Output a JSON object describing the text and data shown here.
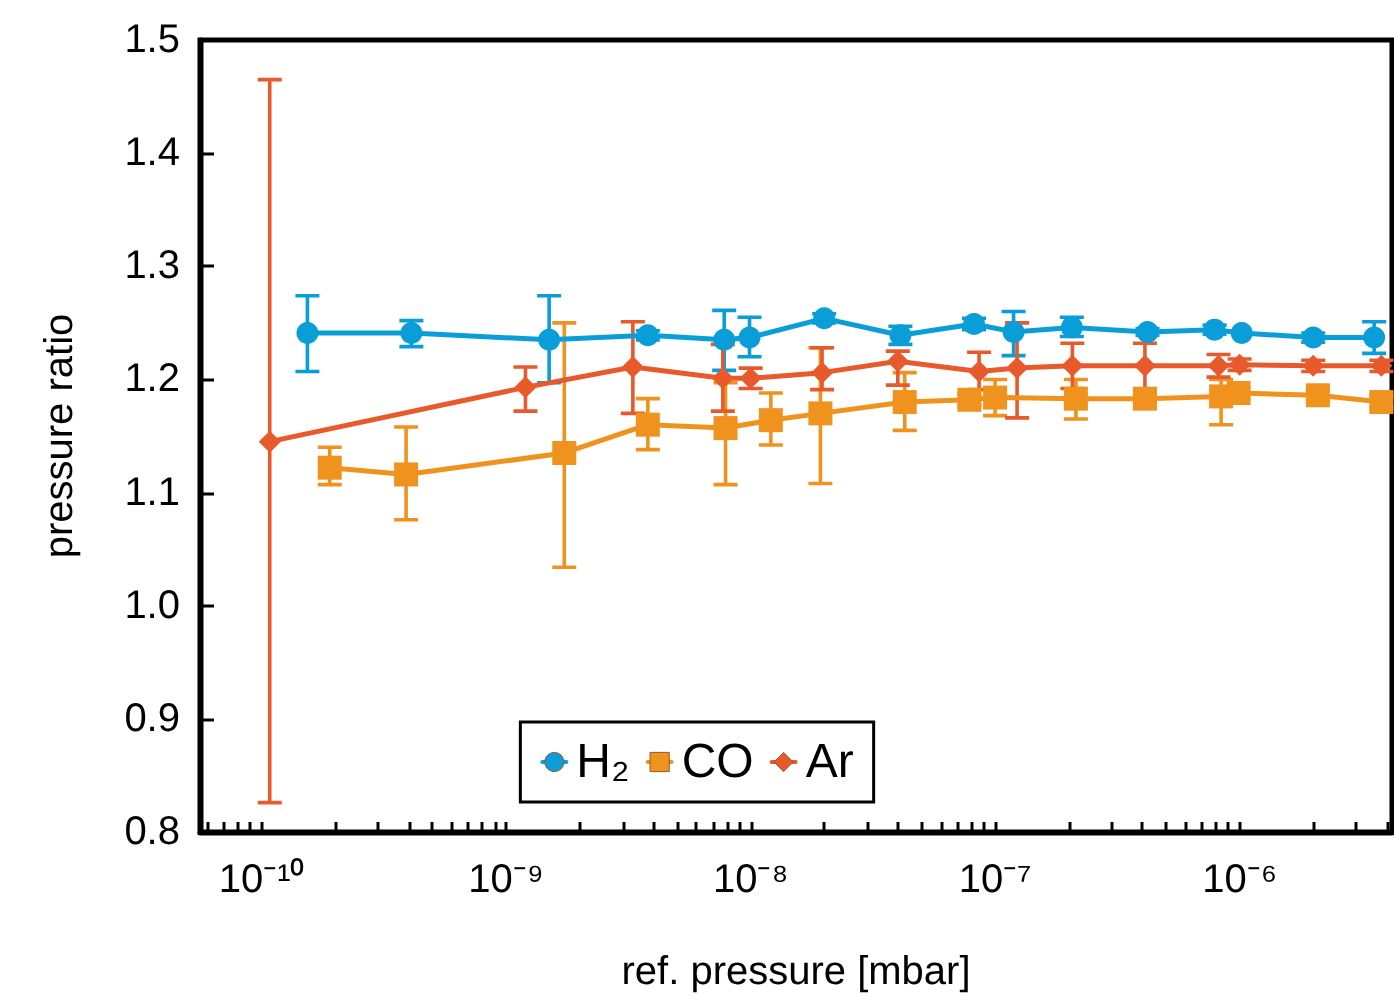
{
  "chart_data": {
    "type": "line",
    "xlabel": "ref. pressure [mbar]",
    "ylabel": "pressure ratio",
    "log": "x",
    "xlim": [
      5.6e-11,
      4.2e-06
    ],
    "ylim": [
      0.8,
      1.5
    ],
    "xticks": [
      {
        "value": 1e-10,
        "label": "10⁻¹⁰"
      },
      {
        "value": 1e-09,
        "label": "10⁻⁹"
      },
      {
        "value": 1e-08,
        "label": "10⁻⁸"
      },
      {
        "value": 1e-07,
        "label": "10⁻⁷"
      },
      {
        "value": 1e-06,
        "label": "10⁻⁶"
      }
    ],
    "yticks": [
      {
        "value": 0.8,
        "label": "0.8"
      },
      {
        "value": 0.9,
        "label": "0.9"
      },
      {
        "value": 1.0,
        "label": "1.0"
      },
      {
        "value": 1.1,
        "label": "1.1"
      },
      {
        "value": 1.2,
        "label": "1.2"
      },
      {
        "value": 1.3,
        "label": "1.3"
      },
      {
        "value": 1.4,
        "label": "1.4"
      },
      {
        "value": 1.5,
        "label": "1.5"
      }
    ],
    "grid": false,
    "legend": "bottom",
    "line_style": "solid",
    "series": [
      {
        "name": "H₂",
        "color": "#0a9ed9",
        "marker": "circle",
        "x": [
          1.54e-10,
          4.1e-10,
          1.5e-09,
          3.8e-09,
          7.8e-09,
          9.9e-09,
          2e-08,
          4.1e-08,
          8.2e-08,
          1.19e-07,
          2.06e-07,
          4.2e-07,
          7.9e-07,
          1.02e-06,
          2e-06,
          3.55e-06
        ],
        "values": [
          1.241,
          1.241,
          1.235,
          1.239,
          1.235,
          1.237,
          1.254,
          1.239,
          1.249,
          1.242,
          1.246,
          1.242,
          1.244,
          1.241,
          1.237,
          1.237
        ],
        "errors": [
          [
            1.207,
            1.274
          ],
          [
            1.229,
            1.252
          ],
          [
            1.197,
            1.274
          ],
          0.004,
          [
            1.208,
            1.261
          ],
          [
            1.22,
            1.255
          ],
          0.004,
          0.008,
          0.005,
          [
            1.221,
            1.26
          ],
          [
            1.238,
            1.255
          ],
          0.003,
          0.004,
          null,
          0.004,
          [
            1.223,
            1.251
          ]
        ]
      },
      {
        "name": "CO",
        "color": "#f0921e",
        "marker": "square",
        "x": [
          1.9e-10,
          3.9e-10,
          1.73e-09,
          3.8e-09,
          7.9e-09,
          1.21e-08,
          1.93e-08,
          4.27e-08,
          7.85e-08,
          1e-07,
          2.14e-07,
          4.1e-07,
          8.4e-07,
          9.9e-07,
          2.09e-06,
          3.8e-06
        ],
        "values": [
          1.122,
          1.116,
          1.135,
          1.16,
          1.157,
          1.164,
          1.17,
          1.18,
          1.182,
          1.184,
          1.183,
          1.183,
          1.185,
          1.188,
          1.186,
          1.18
        ],
        "errors": [
          [
            1.107,
            1.14
          ],
          [
            1.076,
            1.158
          ],
          [
            1.034,
            1.25
          ],
          [
            1.138,
            1.183
          ],
          [
            1.107,
            1.197
          ],
          [
            1.142,
            1.188
          ],
          [
            1.108,
            1.228
          ],
          [
            1.155,
            1.206
          ],
          0.005,
          [
            1.168,
            1.2
          ],
          [
            1.165,
            1.2
          ],
          0.004,
          [
            1.16,
            1.2
          ],
          0.005,
          0.005,
          0.005
        ]
      },
      {
        "name": "Ar",
        "color": "#e85a2c",
        "marker": "diamond",
        "x": [
          1.08e-10,
          1.2e-09,
          3.3e-09,
          7.7e-09,
          1e-08,
          1.96e-08,
          4e-08,
          8.6e-08,
          1.23e-07,
          2.07e-07,
          4.1e-07,
          8.2e-07,
          1e-06,
          2e-06,
          3.8e-06
        ],
        "values": [
          1.145,
          1.193,
          1.211,
          1.201,
          1.201,
          1.206,
          1.216,
          1.207,
          1.21,
          1.212,
          1.212,
          1.212,
          1.213,
          1.212,
          1.212
        ],
        "errors": [
          [
            0.826,
            1.465
          ],
          [
            1.172,
            1.211
          ],
          [
            1.17,
            1.251
          ],
          [
            1.172,
            1.231
          ],
          0.009,
          [
            1.191,
            1.228
          ],
          [
            1.195,
            1.225
          ],
          [
            1.191,
            1.224
          ],
          [
            1.166,
            1.25
          ],
          0.02,
          [
            1.191,
            1.232
          ],
          0.01,
          0.005,
          0.005,
          0.005
        ]
      }
    ]
  }
}
